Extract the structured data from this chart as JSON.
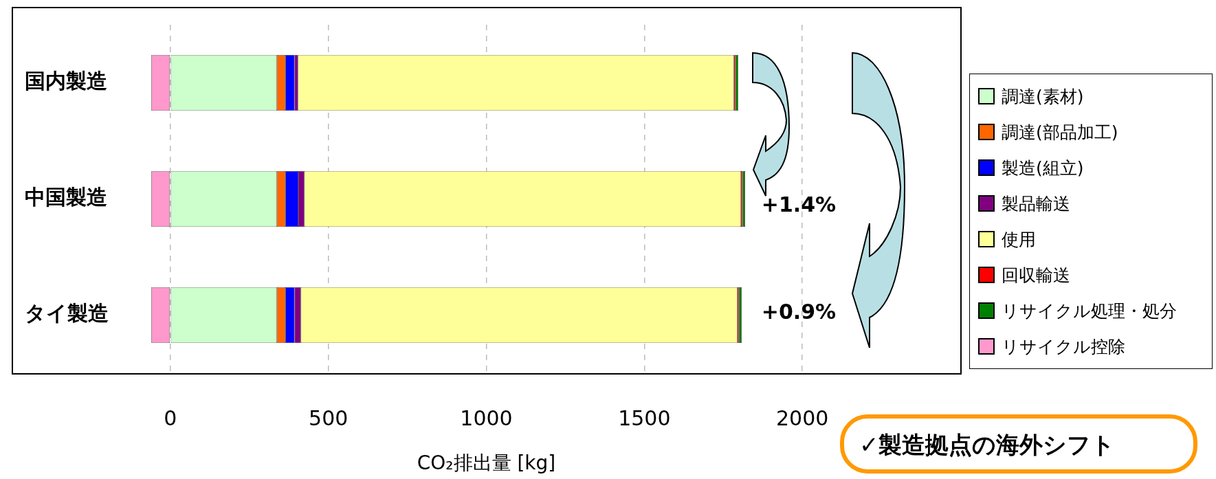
{
  "chart_data": {
    "type": "bar",
    "orientation": "horizontal",
    "stacked": true,
    "categories": [
      "国内製造",
      "中国製造",
      "タイ製造"
    ],
    "series": [
      {
        "name": "調達(素材)",
        "color": "#ccffcc",
        "values": [
          337,
          337,
          337
        ]
      },
      {
        "name": "調達(部品加工)",
        "color": "#ff6600",
        "values": [
          27,
          27,
          27
        ]
      },
      {
        "name": "製造(組立)",
        "color": "#0000ff",
        "values": [
          29,
          41,
          29
        ]
      },
      {
        "name": "製品輸送",
        "color": "#800080",
        "values": [
          11,
          19,
          20
        ]
      },
      {
        "name": "使用",
        "color": "#ffff99",
        "values": [
          1379,
          1382,
          1381
        ]
      },
      {
        "name": "回収輸送",
        "color": "#ff0000",
        "values": [
          5,
          5,
          5
        ]
      },
      {
        "name": "リサイクル処理・処分",
        "color": "#008000",
        "values": [
          9,
          8,
          9
        ]
      },
      {
        "name": "リサイクル控除",
        "color": "#ff99cc",
        "values": [
          -60,
          -60,
          -60
        ]
      }
    ],
    "xlabel": "CO₂排出量 [kg]",
    "xlim": [
      -500,
      2500
    ],
    "xticks": [
      0,
      500,
      1000,
      1500,
      2000
    ],
    "grid": "x",
    "legend": "right",
    "annotations": [
      "+1.4%",
      "+0.9%",
      "✓製造拠点の海外シフト"
    ]
  }
}
